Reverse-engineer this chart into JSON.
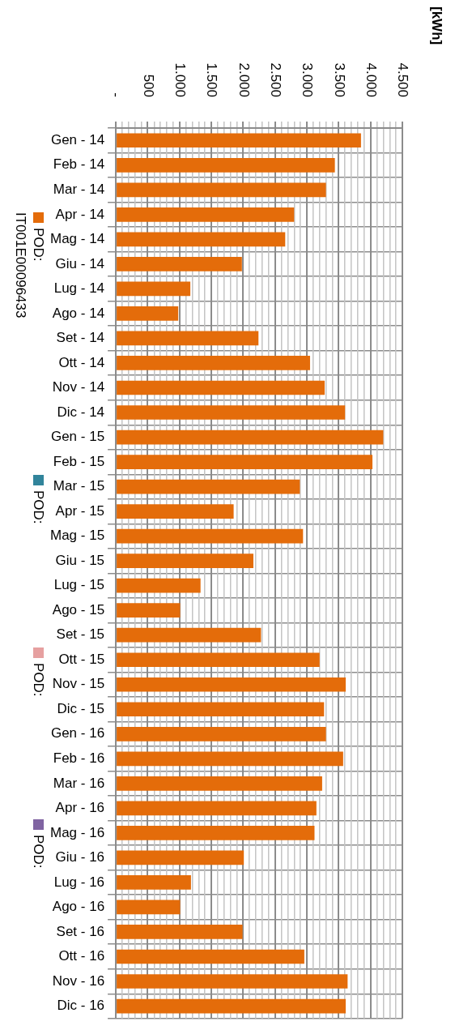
{
  "chart_data": {
    "type": "bar",
    "orientation": "horizontal",
    "ylabel": "[kWh]",
    "categories": [
      "Gen - 14",
      "Feb - 14",
      "Mar - 14",
      "Apr - 14",
      "Mag - 14",
      "Giu - 14",
      "Lug - 14",
      "Ago - 14",
      "Set - 14",
      "Ott - 14",
      "Nov - 14",
      "Dic - 14",
      "Gen - 15",
      "Feb - 15",
      "Mar - 15",
      "Apr - 15",
      "Mag - 15",
      "Giu - 15",
      "Lug - 15",
      "Ago - 15",
      "Set - 15",
      "Ott - 15",
      "Nov - 15",
      "Dic - 15",
      "Gen - 16",
      "Feb - 16",
      "Mar - 16",
      "Apr - 16",
      "Mag - 16",
      "Giu - 16",
      "Lug - 16",
      "Ago - 16",
      "Set - 16",
      "Ott - 16",
      "Nov - 16",
      "Dic - 16"
    ],
    "series": [
      {
        "name": "POD: IT001E00096433",
        "color": "#e46c0a",
        "values": [
          3850,
          3440,
          3300,
          2800,
          2660,
          1980,
          1170,
          980,
          2240,
          3050,
          3280,
          3600,
          4200,
          4030,
          2890,
          1850,
          2940,
          2160,
          1330,
          1010,
          2280,
          3200,
          3610,
          3270,
          3300,
          3570,
          3240,
          3150,
          3120,
          2010,
          1180,
          1010,
          1990,
          2960,
          3640,
          3610
        ]
      },
      {
        "name": "POD:",
        "color": "#31849b",
        "values": [
          null,
          null,
          null,
          null,
          null,
          null,
          null,
          null,
          null,
          null,
          null,
          null,
          null,
          null,
          null,
          null,
          null,
          null,
          null,
          null,
          null,
          null,
          null,
          null,
          null,
          null,
          null,
          null,
          null,
          null,
          null,
          null,
          null,
          null,
          null,
          null
        ]
      },
      {
        "name": "POD:",
        "color": "#e6a0a0",
        "values": [
          null,
          null,
          null,
          null,
          null,
          null,
          null,
          null,
          null,
          null,
          null,
          null,
          null,
          null,
          null,
          null,
          null,
          null,
          null,
          null,
          null,
          null,
          null,
          null,
          null,
          null,
          null,
          null,
          null,
          null,
          null,
          null,
          null,
          null,
          null,
          null
        ]
      },
      {
        "name": "POD:",
        "color": "#8064a2",
        "values": [
          null,
          null,
          null,
          null,
          null,
          null,
          null,
          null,
          null,
          null,
          null,
          null,
          null,
          null,
          null,
          null,
          null,
          null,
          null,
          null,
          null,
          null,
          null,
          null,
          null,
          null,
          null,
          null,
          null,
          null,
          null,
          null,
          null,
          null,
          null,
          null
        ]
      }
    ],
    "xlim": [
      0,
      4500
    ],
    "xticks": [
      {
        "value": 0,
        "label": "-"
      },
      {
        "value": 100,
        "label": null
      },
      {
        "value": 200,
        "label": null
      },
      {
        "value": 300,
        "label": null
      },
      {
        "value": 400,
        "label": null
      },
      500,
      {
        "value": 600,
        "label": null
      },
      {
        "value": 700,
        "label": null
      },
      {
        "value": 800,
        "label": null
      },
      {
        "value": 900,
        "label": null
      },
      {
        "value": 1000,
        "label": "1.000"
      },
      {
        "value": 1100,
        "label": null
      },
      {
        "value": 1200,
        "label": null
      },
      {
        "value": 1300,
        "label": null
      },
      {
        "value": 1400,
        "label": null
      },
      {
        "value": 1500,
        "label": "1.500"
      },
      {
        "value": 1600,
        "label": null
      },
      {
        "value": 1700,
        "label": null
      },
      {
        "value": 1800,
        "label": null
      },
      {
        "value": 1900,
        "label": null
      },
      {
        "value": 2000,
        "label": "2.000"
      },
      {
        "value": 2100,
        "label": null
      },
      {
        "value": 2200,
        "label": null
      },
      {
        "value": 2300,
        "label": null
      },
      {
        "value": 2400,
        "label": null
      },
      {
        "value": 2500,
        "label": "2.500"
      },
      {
        "value": 2600,
        "label": null
      },
      {
        "value": 2700,
        "label": null
      },
      {
        "value": 2800,
        "label": null
      },
      {
        "value": 2900,
        "label": null
      },
      {
        "value": 3000,
        "label": "3.000"
      },
      {
        "value": 3100,
        "label": null
      },
      {
        "value": 3200,
        "label": null
      },
      {
        "value": 3300,
        "label": null
      },
      {
        "value": 3400,
        "label": null
      },
      {
        "value": 3500,
        "label": "3.500"
      },
      {
        "value": 3600,
        "label": null
      },
      {
        "value": 3700,
        "label": null
      },
      {
        "value": 3800,
        "label": null
      },
      {
        "value": 3900,
        "label": null
      },
      {
        "value": 4000,
        "label": "4.000"
      },
      {
        "value": 4100,
        "label": null
      },
      {
        "value": 4200,
        "label": null
      },
      {
        "value": 4300,
        "label": null
      },
      {
        "value": 4400,
        "label": null
      },
      {
        "value": 4500,
        "label": "4.500"
      }
    ],
    "grid": true,
    "legend": "left"
  }
}
